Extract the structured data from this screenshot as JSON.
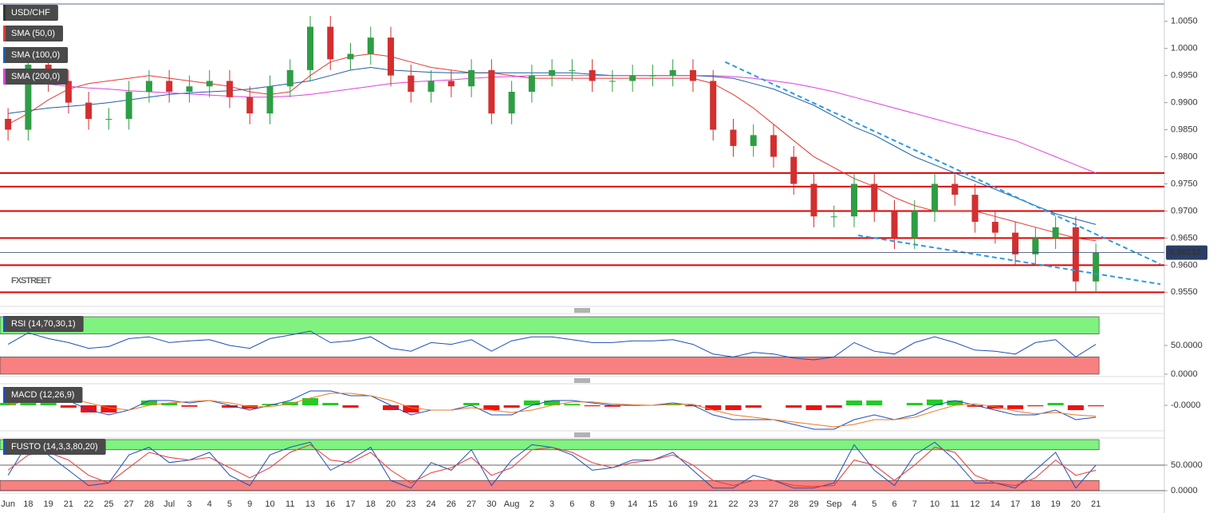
{
  "chart_data": [
    {
      "type": "candlestick",
      "title": "USD/CHF",
      "watermark": "FXSTREET",
      "categories": [
        "Jun",
        "18",
        "19",
        "21",
        "22",
        "25",
        "27",
        "28",
        "Jul",
        "3",
        "4",
        "5",
        "9",
        "10",
        "11",
        "13",
        "16",
        "17",
        "18",
        "20",
        "23",
        "24",
        "26",
        "27",
        "30",
        "Aug",
        "2",
        "3",
        "6",
        "8",
        "9",
        "14",
        "15",
        "16",
        "19",
        "21",
        "22",
        "23",
        "27",
        "28",
        "29",
        "Sep",
        "4",
        "5",
        "6",
        "7",
        "10",
        "11",
        "12",
        "14",
        "17",
        "18",
        "19",
        "20",
        "21"
      ],
      "open": [
        0.987,
        0.985,
        0.997,
        0.994,
        0.99,
        0.987,
        0.987,
        0.992,
        0.994,
        0.992,
        0.993,
        0.994,
        0.991,
        0.988,
        0.993,
        0.996,
        1.004,
        0.998,
        0.999,
        1.002,
        0.995,
        0.992,
        0.994,
        0.993,
        0.996,
        0.988,
        0.992,
        0.995,
        0.996,
        0.996,
        0.994,
        0.994,
        0.995,
        0.995,
        0.996,
        0.994,
        0.985,
        0.982,
        0.984,
        0.98,
        0.975,
        0.969,
        0.969,
        0.975,
        0.97,
        0.965,
        0.97,
        0.975,
        0.973,
        0.968,
        0.966,
        0.962,
        0.965,
        0.967,
        0.957
      ],
      "high": [
        0.989,
        0.999,
        0.999,
        0.996,
        0.992,
        0.989,
        0.994,
        0.996,
        0.996,
        0.995,
        0.996,
        0.996,
        0.993,
        0.995,
        0.998,
        1.006,
        1.006,
        1.001,
        1.004,
        1.004,
        0.997,
        0.996,
        0.996,
        0.998,
        0.998,
        0.994,
        0.997,
        0.998,
        0.998,
        0.998,
        0.996,
        0.997,
        0.997,
        0.998,
        0.998,
        0.996,
        0.987,
        0.986,
        0.986,
        0.982,
        0.977,
        0.971,
        0.977,
        0.977,
        0.972,
        0.972,
        0.977,
        0.977,
        0.975,
        0.97,
        0.968,
        0.967,
        0.969,
        0.969,
        0.964
      ],
      "low": [
        0.983,
        0.983,
        0.992,
        0.988,
        0.985,
        0.985,
        0.985,
        0.99,
        0.99,
        0.99,
        0.991,
        0.989,
        0.986,
        0.986,
        0.991,
        0.994,
        0.996,
        0.996,
        0.997,
        0.993,
        0.99,
        0.99,
        0.991,
        0.991,
        0.986,
        0.986,
        0.99,
        0.993,
        0.994,
        0.992,
        0.992,
        0.992,
        0.993,
        0.993,
        0.992,
        0.983,
        0.98,
        0.98,
        0.978,
        0.973,
        0.967,
        0.967,
        0.967,
        0.968,
        0.963,
        0.963,
        0.968,
        0.971,
        0.966,
        0.964,
        0.96,
        0.96,
        0.963,
        0.955,
        0.955
      ],
      "close": [
        0.985,
        0.997,
        0.994,
        0.99,
        0.987,
        0.987,
        0.992,
        0.994,
        0.992,
        0.993,
        0.994,
        0.991,
        0.988,
        0.993,
        0.996,
        1.004,
        0.998,
        0.999,
        1.002,
        0.995,
        0.992,
        0.994,
        0.993,
        0.996,
        0.988,
        0.992,
        0.995,
        0.996,
        0.996,
        0.994,
        0.994,
        0.995,
        0.995,
        0.996,
        0.994,
        0.985,
        0.982,
        0.984,
        0.98,
        0.975,
        0.969,
        0.969,
        0.975,
        0.97,
        0.965,
        0.97,
        0.975,
        0.973,
        0.968,
        0.966,
        0.962,
        0.965,
        0.967,
        0.957,
        0.9623
      ],
      "up_color": "#2e9e44",
      "down_color": "#d32f2f",
      "series": [
        {
          "name": "SMA (50,0)",
          "color": "#e53935",
          "values": [
            0.986,
            0.988,
            0.9905,
            0.9925,
            0.9935,
            0.994,
            0.9945,
            0.995,
            0.9945,
            0.994,
            0.9935,
            0.993,
            0.992,
            0.9915,
            0.992,
            0.995,
            0.9975,
            0.9985,
            0.999,
            0.9985,
            0.9975,
            0.9965,
            0.996,
            0.9955,
            0.9955,
            0.995,
            0.9945,
            0.9945,
            0.9945,
            0.9945,
            0.9945,
            0.9945,
            0.9945,
            0.9945,
            0.9945,
            0.9935,
            0.9915,
            0.989,
            0.986,
            0.983,
            0.98,
            0.978,
            0.976,
            0.9745,
            0.9725,
            0.971,
            0.97,
            0.97,
            0.97,
            0.969,
            0.968,
            0.967,
            0.966,
            0.965,
            0.9645
          ]
        },
        {
          "name": "SMA (100,0)",
          "color": "#1e5fa8",
          "values": [
            0.988,
            0.9885,
            0.989,
            0.9893,
            0.9896,
            0.99,
            0.9905,
            0.991,
            0.9915,
            0.9918,
            0.992,
            0.9922,
            0.9925,
            0.993,
            0.9935,
            0.994,
            0.995,
            0.996,
            0.9965,
            0.996,
            0.9958,
            0.9956,
            0.9955,
            0.9955,
            0.9955,
            0.9955,
            0.9955,
            0.9955,
            0.9955,
            0.9952,
            0.995,
            0.995,
            0.995,
            0.995,
            0.995,
            0.9948,
            0.9945,
            0.9935,
            0.9925,
            0.991,
            0.9895,
            0.9875,
            0.9855,
            0.984,
            0.982,
            0.98,
            0.9785,
            0.977,
            0.9755,
            0.974,
            0.9725,
            0.971,
            0.9695,
            0.9685,
            0.9675
          ]
        },
        {
          "name": "SMA (200,0)",
          "color": "#e040e0",
          "values": [
            0.994,
            0.9937,
            0.9934,
            0.993,
            0.9927,
            0.9925,
            0.9922,
            0.992,
            0.9918,
            0.9916,
            0.9914,
            0.9912,
            0.991,
            0.991,
            0.9912,
            0.9915,
            0.992,
            0.9925,
            0.993,
            0.9935,
            0.9938,
            0.994,
            0.9942,
            0.9945,
            0.9947,
            0.9948,
            0.995,
            0.995,
            0.995,
            0.995,
            0.995,
            0.995,
            0.995,
            0.995,
            0.995,
            0.995,
            0.9948,
            0.9945,
            0.994,
            0.9935,
            0.9928,
            0.992,
            0.991,
            0.99,
            0.989,
            0.988,
            0.987,
            0.986,
            0.985,
            0.984,
            0.983,
            0.9815,
            0.98,
            0.9785,
            0.977
          ]
        }
      ],
      "levels": [
        0.977,
        0.9745,
        0.97,
        0.965,
        0.96,
        0.955
      ],
      "level_color": "#e00000",
      "trendlines": [
        {
          "x": [
            35.6,
            57.2
          ],
          "values": [
            0.9975,
            0.9602
          ]
        },
        {
          "x": [
            42.2,
            57.2
          ],
          "values": [
            0.9655,
            0.9565
          ]
        }
      ],
      "trendline_color": "#2a9be0",
      "last_price": 0.96232,
      "xlim": [
        -0.4,
        57.4
      ],
      "ylim": [
        0.9524,
        1.0082
      ],
      "yticks": [
        {
          "value": 1.005,
          "label": "1.0050"
        },
        {
          "value": 1.0,
          "label": "1.0000"
        },
        {
          "value": 0.995,
          "label": "0.9950"
        },
        {
          "value": 0.99,
          "label": "0.9900"
        },
        {
          "value": 0.985,
          "label": "0.9850"
        },
        {
          "value": 0.98,
          "label": "0.9800"
        },
        {
          "value": 0.975,
          "label": "0.9750"
        },
        {
          "value": 0.97,
          "label": "0.9700"
        },
        {
          "value": 0.965,
          "label": "0.9650"
        },
        {
          "value": 0.96,
          "label": "0.9600"
        },
        {
          "value": 0.955,
          "label": "0.9550"
        }
      ]
    },
    {
      "type": "line",
      "title": "RSI (14,70,30,1)",
      "upper_band": 70,
      "lower_band": 30,
      "series": [
        {
          "color": "#1e4fb8",
          "values": [
            52,
            72,
            62,
            55,
            45,
            48,
            62,
            65,
            55,
            58,
            60,
            50,
            45,
            62,
            68,
            75,
            55,
            58,
            65,
            45,
            40,
            55,
            52,
            60,
            40,
            58,
            65,
            65,
            60,
            55,
            55,
            58,
            58,
            60,
            52,
            35,
            30,
            38,
            35,
            28,
            25,
            30,
            55,
            40,
            35,
            55,
            65,
            55,
            42,
            40,
            35,
            55,
            60,
            30,
            52
          ]
        }
      ],
      "ylim": [
        0,
        100
      ],
      "yticks": [
        {
          "value": 50,
          "label": "50.0000"
        },
        {
          "value": 0,
          "label": "0.0000"
        }
      ],
      "grid": false
    },
    {
      "type": "macd",
      "title": "MACD (12,26,9)",
      "macd": [
        0.0005,
        0.002,
        0.002,
        0.001,
        -0.001,
        -0.002,
        -0.001,
        0.001,
        0.001,
        0.0005,
        0.001,
        0,
        -0.001,
        0,
        0.001,
        0.003,
        0.003,
        0.002,
        0.002,
        0,
        -0.002,
        -0.001,
        -0.001,
        0,
        -0.002,
        -0.002,
        0,
        0.001,
        0.001,
        0.0005,
        0,
        0,
        0,
        0.0005,
        0,
        -0.002,
        -0.003,
        -0.003,
        -0.003,
        -0.004,
        -0.005,
        -0.005,
        -0.003,
        -0.002,
        -0.003,
        -0.002,
        0,
        0.001,
        0,
        -0.001,
        -0.002,
        -0.002,
        -0.001,
        -0.003,
        -0.0025
      ],
      "signal": [
        0,
        0.001,
        0.0015,
        0.0015,
        0.0005,
        -0.0005,
        -0.001,
        0,
        0.0005,
        0.0008,
        0.001,
        0.0005,
        -0.0003,
        -0.0003,
        0.0003,
        0.0015,
        0.0025,
        0.0025,
        0.002,
        0.001,
        -0.0005,
        -0.001,
        -0.001,
        -0.0005,
        -0.001,
        -0.0015,
        -0.001,
        0,
        0.0007,
        0.0007,
        0.0003,
        0.0001,
        0,
        0.0002,
        0.0002,
        -0.001,
        -0.002,
        -0.0025,
        -0.003,
        -0.0035,
        -0.004,
        -0.0045,
        -0.004,
        -0.003,
        -0.003,
        -0.0025,
        -0.0012,
        0,
        0.0003,
        -0.0003,
        -0.0012,
        -0.0018,
        -0.0015,
        -0.002,
        -0.0023
      ],
      "histogram": [
        0.0005,
        0.001,
        0.0005,
        -0.0005,
        -0.0015,
        -0.0015,
        0,
        0.001,
        0.0005,
        -0.0003,
        0,
        -0.0005,
        -0.0007,
        0.0003,
        0.0007,
        0.0015,
        0.0005,
        -0.0005,
        0,
        -0.001,
        -0.0015,
        0,
        0,
        0.0005,
        -0.001,
        -0.0005,
        0.001,
        0.001,
        0.0003,
        -0.0002,
        -0.0003,
        -0.0001,
        0,
        0.0003,
        -0.0002,
        -0.001,
        -0.001,
        -0.0005,
        0,
        -0.0005,
        -0.001,
        -0.0005,
        0.001,
        0.001,
        0,
        0.0005,
        0.0012,
        0.001,
        -0.0003,
        -0.0007,
        -0.0008,
        -0.0002,
        0.0005,
        -0.001,
        -0.0002
      ],
      "macd_color": "#1e4fb8",
      "signal_color": "#f07820",
      "up_color": "#22cc22",
      "down_color": "#ee1111",
      "ylim": [
        -0.005,
        0.004
      ],
      "yticks": [
        {
          "value": 0,
          "label": "-0.0000"
        }
      ]
    },
    {
      "type": "line",
      "title": "FUSTO (14,3,3,80,20)",
      "upper_band": 80,
      "lower_band": 20,
      "series": [
        {
          "color": "#1e4fb8",
          "values": [
            30,
            95,
            70,
            40,
            10,
            15,
            70,
            85,
            55,
            60,
            75,
            30,
            10,
            70,
            85,
            95,
            40,
            60,
            85,
            20,
            5,
            55,
            40,
            80,
            10,
            60,
            90,
            85,
            70,
            40,
            45,
            60,
            60,
            75,
            40,
            5,
            5,
            30,
            20,
            5,
            5,
            15,
            90,
            40,
            10,
            70,
            95,
            60,
            15,
            15,
            5,
            40,
            75,
            5,
            50
          ]
        },
        {
          "color": "#e53935",
          "values": [
            40,
            70,
            75,
            60,
            30,
            15,
            45,
            75,
            65,
            60,
            65,
            45,
            25,
            45,
            75,
            90,
            60,
            55,
            75,
            40,
            15,
            35,
            45,
            65,
            30,
            45,
            80,
            85,
            75,
            55,
            45,
            55,
            60,
            70,
            50,
            20,
            10,
            20,
            20,
            10,
            8,
            10,
            60,
            50,
            20,
            50,
            85,
            75,
            30,
            15,
            10,
            25,
            60,
            30,
            40
          ]
        }
      ],
      "ylim": [
        0,
        100
      ],
      "yticks": [
        {
          "value": 50,
          "label": "50.0000"
        },
        {
          "value": 0,
          "label": "0.0000"
        }
      ],
      "grid": true
    }
  ]
}
